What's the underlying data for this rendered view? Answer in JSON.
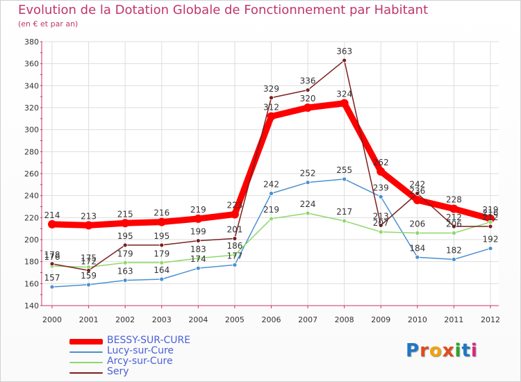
{
  "title": "Evolution de la Dotation Globale de Fonctionnement par Habitant",
  "subtitle": "(en € et par an)",
  "logo": {
    "text": "Proxiti",
    "colors": [
      "#1f77c6",
      "#e24a1b",
      "#f0a30a",
      "#e24a1b",
      "#2aa52a",
      "#1f77c6",
      "#d62a7a"
    ]
  },
  "chart_data": {
    "type": "line",
    "x": [
      "2000",
      "2001",
      "2002",
      "2003",
      "2004",
      "2005",
      "2006",
      "2007",
      "2008",
      "2009",
      "2010",
      "2011",
      "2012"
    ],
    "ylim": [
      140,
      380
    ],
    "yticks": [
      140,
      160,
      180,
      200,
      220,
      240,
      260,
      280,
      300,
      320,
      340,
      360,
      380
    ],
    "grid": true,
    "series": [
      {
        "name": "BESSY-SUR-CURE",
        "color": "#ff0000",
        "values": [
          214,
          213,
          215,
          216,
          219,
          223,
          312,
          320,
          324,
          262,
          236,
          228,
          219
        ]
      },
      {
        "name": "Lucy-sur-Cure",
        "color": "#4a90d0",
        "values": [
          157,
          159,
          163,
          164,
          174,
          177,
          242,
          252,
          255,
          239,
          184,
          182,
          192
        ]
      },
      {
        "name": "Arcy-sur-Cure",
        "color": "#8ed86a",
        "values": [
          176,
          175,
          179,
          179,
          183,
          186,
          219,
          224,
          217,
          207,
          206,
          206,
          216
        ]
      },
      {
        "name": "Sery",
        "color": "#7a1f1f",
        "values": [
          178,
          172,
          195,
          195,
          199,
          201,
          329,
          336,
          363,
          213,
          242,
          212,
          212
        ]
      }
    ],
    "point_labels": [
      [
        "214",
        "213",
        "215",
        "216",
        "219",
        "223",
        "312",
        "320",
        "324",
        "262",
        "236",
        "228",
        "219"
      ],
      [
        "157",
        "159",
        "163",
        "164",
        "174",
        "177",
        "242",
        "252",
        "255",
        "239",
        "184",
        "182",
        "192"
      ],
      [
        "176",
        "175",
        "179",
        "179",
        "183",
        "186",
        "219",
        "224",
        "217",
        "207",
        "206",
        "206",
        "216"
      ],
      [
        "178",
        "172",
        "195",
        "195",
        "199",
        "201",
        "329",
        "336",
        "363",
        "213",
        "242",
        "212",
        "212"
      ]
    ]
  }
}
